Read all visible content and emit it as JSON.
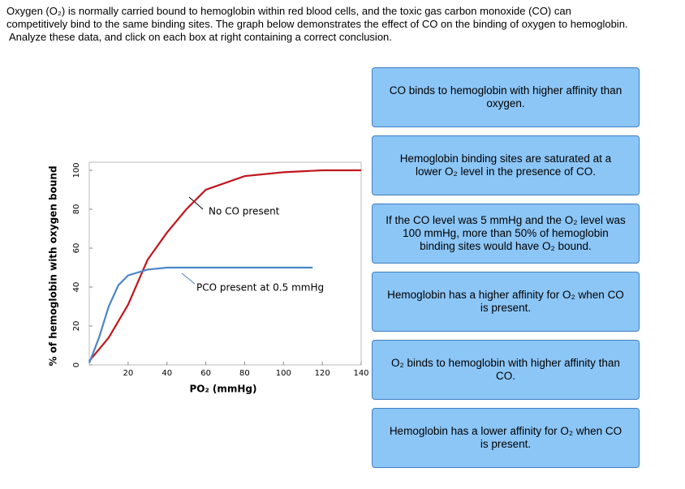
{
  "prompt": [
    "Oxygen (O₂) is normally carried bound to hemoglobin within red blood cells, and the toxic gas carbon monoxide (CO) can",
    "competitively bind to the same binding sites.  The graph below demonstrates the effect of CO on the binding of oxygen to hemoglobin.",
    "Analyze these data, and click on each box at right containing a correct conclusion."
  ],
  "chart_data": {
    "type": "line",
    "xlabel": "PO₂ (mmHg)",
    "ylabel": "% of hemoglobin with oxygen bound",
    "xlim": [
      0,
      140
    ],
    "ylim": [
      0,
      104
    ],
    "xticks": [
      20,
      40,
      60,
      80,
      100,
      120,
      140
    ],
    "yticks": [
      0,
      20,
      40,
      60,
      80,
      100
    ],
    "series": [
      {
        "color": "#c0161c",
        "x": [
          0,
          5,
          10,
          20,
          30,
          40,
          50,
          60,
          80,
          100,
          120,
          140
        ],
        "values": [
          2,
          8,
          14,
          31,
          54,
          68,
          80,
          90,
          97,
          99,
          100,
          100
        ]
      },
      {
        "color": "#4a86c5",
        "x": [
          0,
          5,
          10,
          15,
          20,
          30,
          40,
          60,
          80,
          100,
          115
        ],
        "values": [
          1,
          14,
          30,
          41,
          46,
          49,
          50,
          50,
          50,
          50,
          50
        ]
      }
    ],
    "annotations": [
      "No CO present",
      "PCO present at 0.5 mmHg"
    ]
  },
  "options": [
    "CO binds to hemoglobin with higher affinity than oxygen.",
    "Hemoglobin binding sites are saturated at a lower O₂ level in the presence of CO.",
    "If the CO level was 5 mmHg and the O₂ level was 100 mmHg, more than 50% of hemoglobin binding sites would have O₂ bound.",
    "Hemoglobin has a higher affinity for O₂ when CO is present.",
    "O₂ binds to hemoglobin with higher affinity than CO.",
    "Hemoglobin has a lower affinity for O₂ when CO is present."
  ]
}
